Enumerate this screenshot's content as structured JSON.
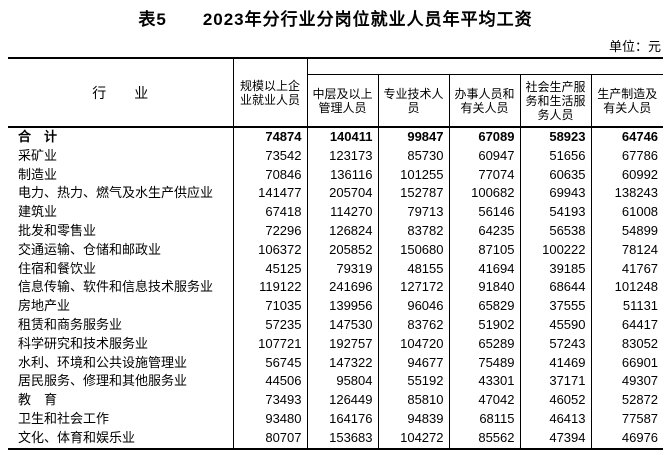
{
  "page": {
    "title": "表5　　2023年分行业分岗位就业人员年平均工资",
    "unit_label": "单位：元"
  },
  "colors": {
    "text": "#000000",
    "background": "#ffffff",
    "border": "#000000"
  },
  "table": {
    "headers": {
      "industry": "行　　业",
      "total_employees": "规模以上企\n业就业人员",
      "management": "中层及以上\n管理人员",
      "professional": "专业技术人\n员",
      "clerical": "办事人员和\n有关人员",
      "service": "社会生产服\n务和生活服\n务人员",
      "production": "生产制造及\n有关人员"
    },
    "rows": [
      {
        "industry": "合　计",
        "bold": true,
        "values": [
          74874,
          140411,
          99847,
          67089,
          58923,
          64746
        ]
      },
      {
        "industry": "采矿业",
        "bold": false,
        "values": [
          73542,
          123173,
          85730,
          60947,
          51656,
          67786
        ]
      },
      {
        "industry": "制造业",
        "bold": false,
        "values": [
          70846,
          136116,
          101255,
          77074,
          60635,
          60992
        ]
      },
      {
        "industry": "电力、热力、燃气及水生产供应业",
        "bold": false,
        "values": [
          141477,
          205704,
          152787,
          100682,
          69943,
          138243
        ]
      },
      {
        "industry": "建筑业",
        "bold": false,
        "values": [
          67418,
          114270,
          79713,
          56146,
          54193,
          61008
        ]
      },
      {
        "industry": "批发和零售业",
        "bold": false,
        "values": [
          72296,
          126824,
          83782,
          64235,
          56538,
          54899
        ]
      },
      {
        "industry": "交通运输、仓储和邮政业",
        "bold": false,
        "values": [
          106372,
          205852,
          150680,
          87105,
          100222,
          78124
        ]
      },
      {
        "industry": "住宿和餐饮业",
        "bold": false,
        "values": [
          45125,
          79319,
          48155,
          41694,
          39185,
          41767
        ]
      },
      {
        "industry": "信息传输、软件和信息技术服务业",
        "bold": false,
        "values": [
          119122,
          241696,
          127172,
          91840,
          68644,
          101248
        ]
      },
      {
        "industry": "房地产业",
        "bold": false,
        "values": [
          71035,
          139956,
          96046,
          65829,
          37555,
          51131
        ]
      },
      {
        "industry": "租赁和商务服务业",
        "bold": false,
        "values": [
          57235,
          147530,
          83762,
          51902,
          45590,
          64417
        ]
      },
      {
        "industry": "科学研究和技术服务业",
        "bold": false,
        "values": [
          107721,
          192757,
          104720,
          65289,
          57243,
          83052
        ]
      },
      {
        "industry": "水利、环境和公共设施管理业",
        "bold": false,
        "values": [
          56745,
          147322,
          94677,
          75489,
          41469,
          66901
        ]
      },
      {
        "industry": "居民服务、修理和其他服务业",
        "bold": false,
        "values": [
          44506,
          95804,
          55192,
          43301,
          37171,
          49307
        ]
      },
      {
        "industry": "教　育",
        "bold": false,
        "values": [
          73493,
          126449,
          85810,
          47042,
          46052,
          52872
        ]
      },
      {
        "industry": "卫生和社会工作",
        "bold": false,
        "values": [
          93480,
          164176,
          94839,
          68115,
          46413,
          77587
        ]
      },
      {
        "industry": "文化、体育和娱乐业",
        "bold": false,
        "values": [
          80707,
          153683,
          104272,
          85562,
          47394,
          46976
        ]
      }
    ]
  }
}
